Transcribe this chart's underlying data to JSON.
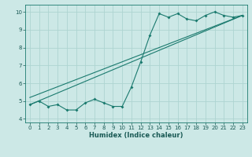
{
  "title": "",
  "xlabel": "Humidex (Indice chaleur)",
  "xlim": [
    -0.5,
    23.5
  ],
  "ylim": [
    3.8,
    10.4
  ],
  "xticks": [
    0,
    1,
    2,
    3,
    4,
    5,
    6,
    7,
    8,
    9,
    10,
    11,
    12,
    13,
    14,
    15,
    16,
    17,
    18,
    19,
    20,
    21,
    22,
    23
  ],
  "yticks": [
    4,
    5,
    6,
    7,
    8,
    9,
    10
  ],
  "background_color": "#cce8e6",
  "grid_color": "#aed4d1",
  "line_color": "#1a7a6e",
  "line1_x": [
    0,
    1,
    2,
    3,
    4,
    5,
    6,
    7,
    8,
    9,
    10,
    11,
    12,
    13,
    14,
    15,
    16,
    17,
    18,
    19,
    20,
    21,
    22,
    23
  ],
  "line1_y": [
    4.8,
    5.0,
    4.7,
    4.8,
    4.5,
    4.5,
    4.9,
    5.1,
    4.9,
    4.7,
    4.7,
    5.8,
    7.2,
    8.7,
    9.9,
    9.7,
    9.9,
    9.6,
    9.5,
    9.8,
    10.0,
    9.8,
    9.7,
    9.8
  ],
  "line2_x": [
    0,
    23
  ],
  "line2_y": [
    4.8,
    9.8
  ],
  "line3_x": [
    0,
    23
  ],
  "line3_y": [
    5.2,
    9.8
  ],
  "tick_fontsize": 5.0,
  "xlabel_fontsize": 6.0,
  "line_width": 0.8,
  "marker_size": 2.0
}
